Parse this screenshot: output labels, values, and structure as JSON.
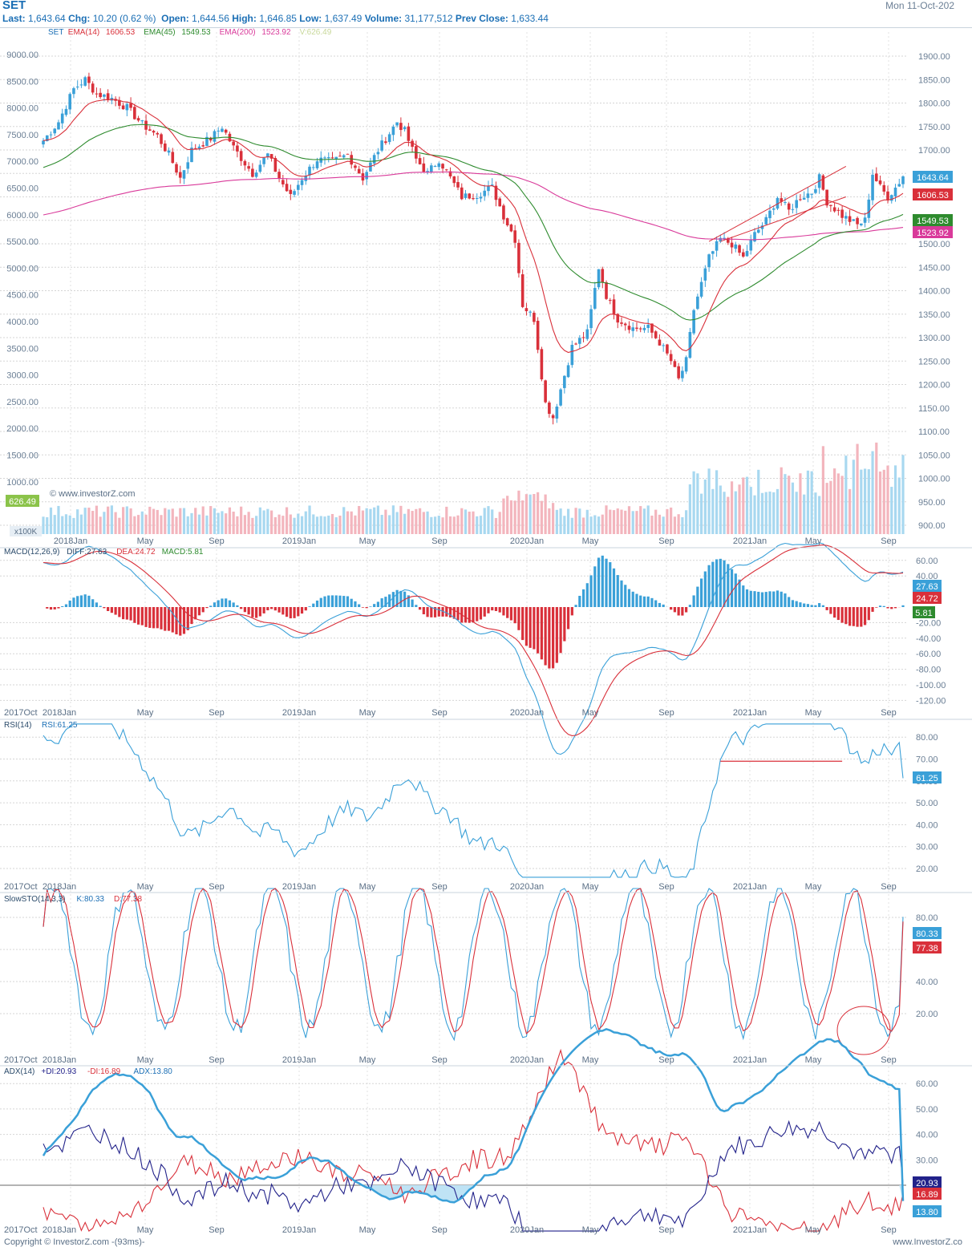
{
  "header": {
    "symbol": "SET",
    "date": "Mon 11-Oct-202",
    "last_label": "Last:",
    "last": "1,643.64",
    "chg_label": "Chg:",
    "chg": "10.20 (0.62 %)",
    "open_label": "Open:",
    "open": "1,644.56",
    "high_label": "High:",
    "high": "1,646.85",
    "low_label": "Low:",
    "low": "1,637.49",
    "volume_label": "Volume:",
    "volume": "31,177,512",
    "prev_label": "Prev Close:",
    "prev": "1,633.44"
  },
  "footer": {
    "left": "Copyright © InvestorZ.com -(93ms)-",
    "right": "www.InvestorZ.co"
  },
  "colors": {
    "up": "#3aa0d8",
    "down": "#d9303a",
    "ema14": "#d9303a",
    "ema45": "#2e8b2e",
    "ema200": "#d93a9a",
    "vol_up": "#a8d8f0",
    "vol_down": "#f3b5bd",
    "grid": "#d5d5d5"
  },
  "chart_data": [
    {
      "type": "candlestick",
      "legend": {
        "symbol": "SET",
        "ema14": "EMA(14)",
        "ema14_val": "1606.53",
        "ema45": "EMA(45)",
        "ema45_val": "1549.53",
        "ema200": "EMA(200)",
        "ema200_val": "1523.92",
        "vol": "V:626.49"
      },
      "x_ticks": [
        "2018Jan",
        "May",
        "Sep",
        "2019Jan",
        "May",
        "Sep",
        "2020Jan",
        "May",
        "Sep",
        "2021Jan",
        "May",
        "Sep"
      ],
      "y_ticks": [
        "1900.00",
        "1850.00",
        "1800.00",
        "1750.00",
        "1700.00",
        "1650.00",
        "1600.00",
        "1550.00",
        "1500.00",
        "1450.00",
        "1400.00",
        "1350.00",
        "1300.00",
        "1250.00",
        "1200.00",
        "1150.00",
        "1100.00",
        "1050.00",
        "1000.00",
        "950.00",
        "900.00"
      ],
      "vol_ticks": [
        "9000.00",
        "8500.00",
        "8000.00",
        "7500.00",
        "7000.00",
        "6500.00",
        "6000.00",
        "5500.00",
        "5000.00",
        "4500.00",
        "4000.00",
        "3500.00",
        "3000.00",
        "2500.00",
        "2000.00",
        "1500.00",
        "1000.00"
      ],
      "vol_unit": "x100K",
      "vol_badge": "626.49",
      "watermark": "© www.investorZ.com",
      "close_anchors": [
        [
          0,
          1720
        ],
        [
          4,
          1760
        ],
        [
          8,
          1830
        ],
        [
          11,
          1850
        ],
        [
          14,
          1820
        ],
        [
          18,
          1810
        ],
        [
          22,
          1790
        ],
        [
          26,
          1755
        ],
        [
          30,
          1730
        ],
        [
          33,
          1690
        ],
        [
          36,
          1640
        ],
        [
          39,
          1700
        ],
        [
          44,
          1725
        ],
        [
          47,
          1750
        ],
        [
          50,
          1705
        ],
        [
          55,
          1650
        ],
        [
          59,
          1690
        ],
        [
          62,
          1640
        ],
        [
          65,
          1600
        ],
        [
          68,
          1640
        ],
        [
          72,
          1680
        ],
        [
          76,
          1675
        ],
        [
          80,
          1690
        ],
        [
          84,
          1640
        ],
        [
          88,
          1700
        ],
        [
          93,
          1760
        ],
        [
          95,
          1740
        ],
        [
          98,
          1680
        ],
        [
          101,
          1650
        ],
        [
          104,
          1680
        ],
        [
          107,
          1640
        ],
        [
          110,
          1600
        ],
        [
          114,
          1605
        ],
        [
          118,
          1620
        ],
        [
          121,
          1560
        ],
        [
          124,
          1510
        ],
        [
          126,
          1370
        ],
        [
          129,
          1340
        ],
        [
          132,
          1160
        ],
        [
          134,
          1130
        ],
        [
          136,
          1190
        ],
        [
          139,
          1280
        ],
        [
          143,
          1310
        ],
        [
          146,
          1450
        ],
        [
          148,
          1390
        ],
        [
          151,
          1340
        ],
        [
          155,
          1320
        ],
        [
          159,
          1320
        ],
        [
          162,
          1290
        ],
        [
          165,
          1250
        ],
        [
          167,
          1210
        ],
        [
          169,
          1250
        ],
        [
          171,
          1360
        ],
        [
          175,
          1470
        ],
        [
          178,
          1510
        ],
        [
          181,
          1500
        ],
        [
          184,
          1470
        ],
        [
          187,
          1520
        ],
        [
          190,
          1550
        ],
        [
          193,
          1600
        ],
        [
          196,
          1570
        ],
        [
          199,
          1600
        ],
        [
          202,
          1610
        ],
        [
          204,
          1640
        ],
        [
          206,
          1590
        ],
        [
          208,
          1575
        ],
        [
          210,
          1560
        ],
        [
          212,
          1550
        ],
        [
          214,
          1540
        ],
        [
          216,
          1550
        ],
        [
          218,
          1650
        ],
        [
          220,
          1620
        ],
        [
          222,
          1600
        ],
        [
          224,
          1620
        ],
        [
          226,
          1643.64
        ]
      ],
      "ema14_last": 1606.53,
      "ema45_last": 1549.53,
      "ema200_last": 1523.92,
      "close_last": 1643.64,
      "trendlines": [
        {
          "from": [
            175,
            1505
          ],
          "to": [
            211,
            1665
          ]
        },
        {
          "from": [
            178,
            1505
          ],
          "to": [
            211,
            1600
          ]
        }
      ]
    },
    {
      "type": "macd",
      "label": "MACD(12,26,9)",
      "diff_label": "DIFF:27.63",
      "dea_label": "DEA:24.72",
      "macd_label": "MACD:5.81",
      "diff": 27.63,
      "dea": 24.72,
      "macd": 5.81,
      "y_ticks": [
        "60.00",
        "40.00",
        "-20.00",
        "-40.00",
        "-60.00",
        "-80.00",
        "-100.00",
        "-120.00"
      ],
      "x_ticks": [
        "2017Oct",
        "2018Jan",
        "May",
        "Sep",
        "2019Jan",
        "May",
        "Sep",
        "2020Jan",
        "May",
        "Sep",
        "2021Jan",
        "May",
        "Sep"
      ]
    },
    {
      "type": "line",
      "label": "RSI(14)",
      "value_label": "RSI:61.25",
      "value": 61.25,
      "y_ticks": [
        "80.00",
        "70.00",
        "60.00",
        "50.00",
        "40.00",
        "30.00",
        "20.00"
      ],
      "x_ticks": [
        "2017Oct",
        "2018Jan",
        "May",
        "Sep",
        "2019Jan",
        "May",
        "Sep",
        "2020Jan",
        "May",
        "Sep",
        "2021Jan",
        "May",
        "Sep"
      ],
      "hline": {
        "value": 69,
        "from": 178,
        "to": 210
      }
    },
    {
      "type": "line",
      "label": "SlowSTO(14,3,3)",
      "k_label": "K:80.33",
      "d_label": "D:77.38",
      "k": 80.33,
      "d": 77.38,
      "y_ticks": [
        "80.00",
        "60.00",
        "40.00",
        "20.00"
      ],
      "x_ticks": [
        "2017Oct",
        "2018Jan",
        "May",
        "Sep",
        "2019Jan",
        "May",
        "Sep",
        "2020Jan",
        "May",
        "Sep",
        "2021Jan",
        "May",
        "Sep"
      ]
    },
    {
      "type": "line",
      "label": "ADX(14)",
      "pdi_label": "+DI:20.93",
      "mdi_label": "-DI:16.89",
      "adx_label": "ADX:13.80",
      "pdi": 20.93,
      "mdi": 16.89,
      "adx": 13.8,
      "y_ticks": [
        "60.00",
        "50.00",
        "40.00",
        "30.00"
      ],
      "x_ticks": [
        "2017Oct",
        "2018Jan",
        "May",
        "Sep",
        "2019Jan",
        "May",
        "Sep",
        "2020Jan",
        "May",
        "Sep",
        "2021Jan",
        "May",
        "Sep"
      ]
    }
  ]
}
